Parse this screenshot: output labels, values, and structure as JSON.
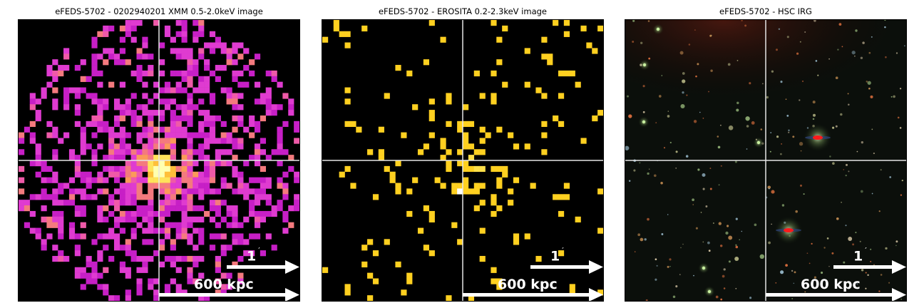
{
  "panels": [
    {
      "title": "eFEDS-5702 - 0202940201 XMM 0.5-2.0keV image",
      "kind": "xmm",
      "scale_angle_label": "1",
      "scale_angle_unit": "′",
      "scale_length_label": "600 kpc"
    },
    {
      "title": "eFEDS-5702 -  EROSITA 0.2-2.3keV image",
      "kind": "erosita",
      "scale_angle_label": "1",
      "scale_angle_unit": "′",
      "scale_length_label": "600 kpc"
    },
    {
      "title": "eFEDS-5702 - HSC IRG",
      "kind": "hsc",
      "scale_angle_label": "1",
      "scale_angle_unit": "′",
      "scale_length_label": "600 kpc"
    }
  ],
  "colors": {
    "xmm_palette": [
      "#7a0a8a",
      "#c71fc6",
      "#df3bd0",
      "#ef5aa8",
      "#f47a7e",
      "#fb9a5a",
      "#ffbf3a",
      "#ffe35a",
      "#ffffb0"
    ],
    "erosita_palette": [
      "#ffd020",
      "#ffe04a",
      "#ffffff"
    ],
    "crosshair": "#e6e6e6",
    "scale_bar": "#ffffff"
  }
}
